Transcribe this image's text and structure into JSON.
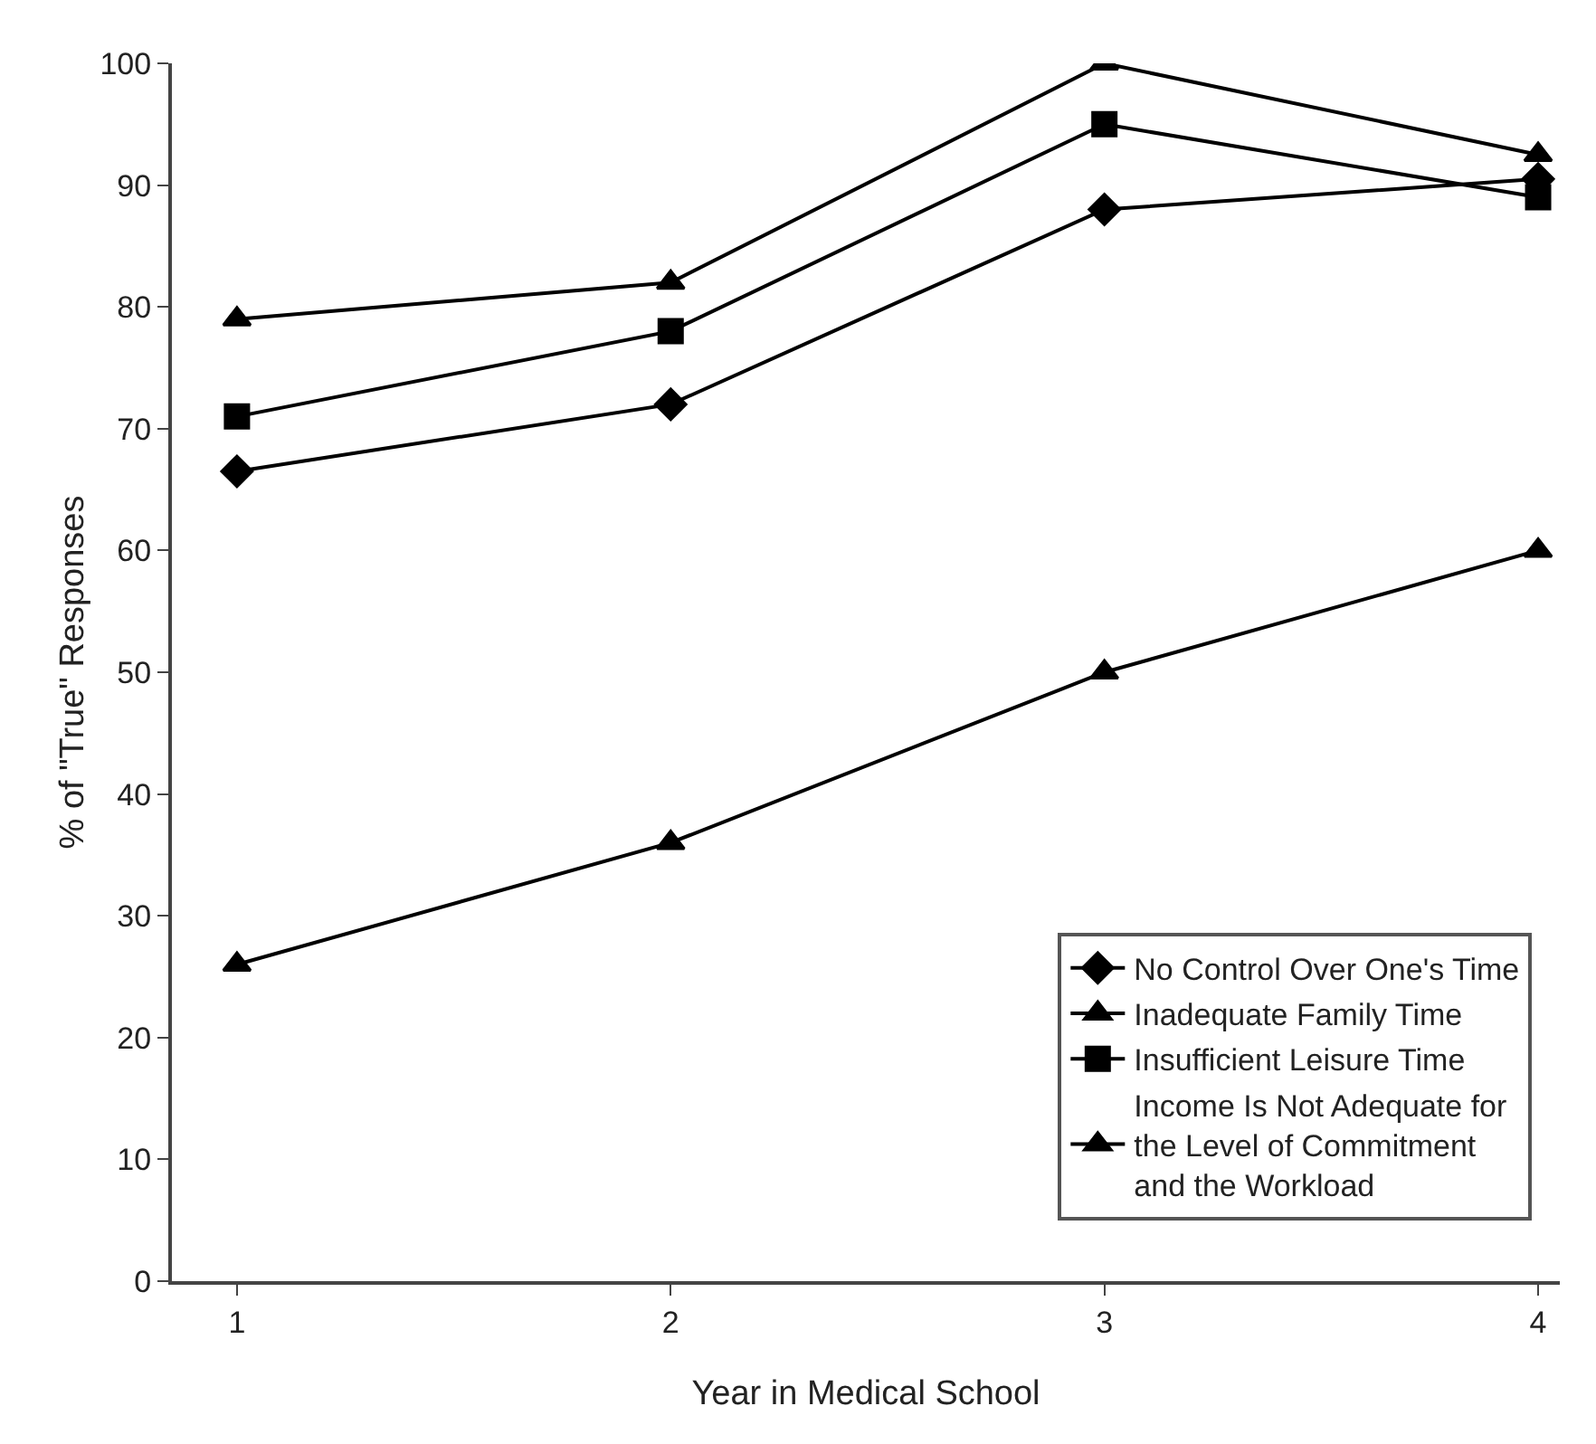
{
  "chart_data": {
    "type": "line",
    "xlabel": "Year in Medical School",
    "ylabel": "% of \"True\" Responses",
    "x": [
      1,
      2,
      3,
      4
    ],
    "series": [
      {
        "name": "No Control Over One's Time",
        "color": "#000000",
        "marker": "diamond",
        "values": [
          66.5,
          72,
          88,
          90.5
        ]
      },
      {
        "name": "Inadequate Family Time",
        "color": "#000000",
        "marker": "triangle",
        "values": [
          79,
          82,
          100,
          92.5
        ]
      },
      {
        "name": "Insufficient Leisure Time",
        "color": "#000000",
        "marker": "square",
        "values": [
          71,
          78,
          95,
          89
        ]
      },
      {
        "name": "Income Is Not Adequate for the Level of Commitment and the Workload",
        "color": "#000000",
        "marker": "triangle",
        "values": [
          26,
          36,
          50,
          60
        ]
      }
    ],
    "xlim": [
      0.85,
      4.05
    ],
    "xticks": [
      1,
      2,
      3,
      4
    ],
    "ylim": [
      0,
      100
    ],
    "yticks": [
      0,
      10,
      20,
      30,
      40,
      50,
      60,
      70,
      80,
      90,
      100
    ],
    "grid": false,
    "legend": "bottom right",
    "line_style": "solid"
  }
}
